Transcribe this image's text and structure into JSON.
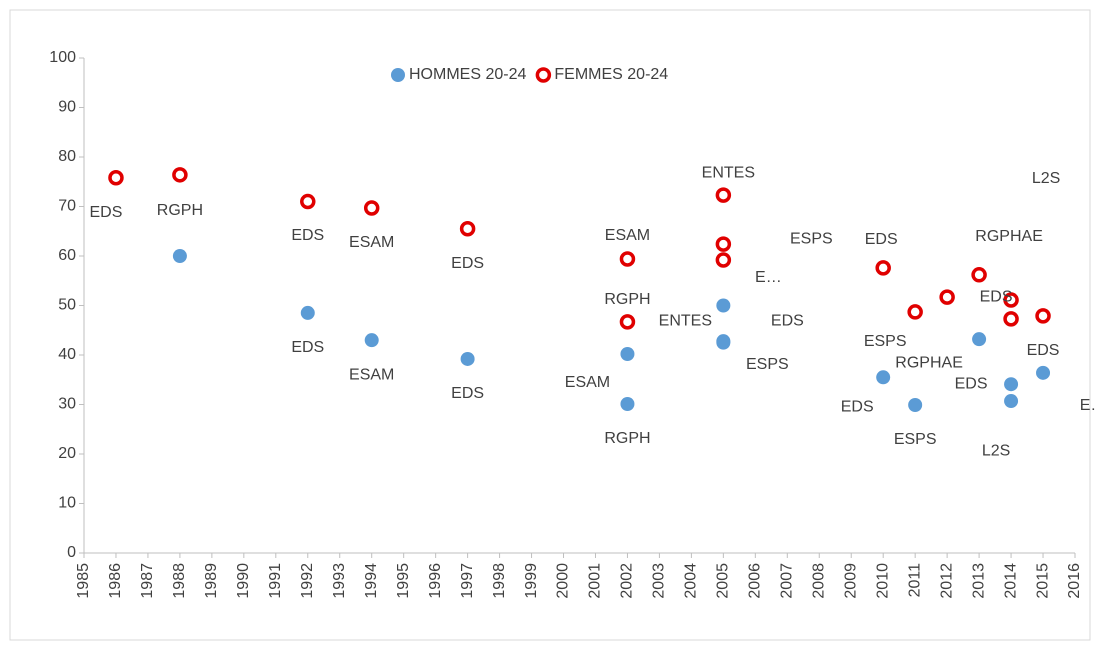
{
  "chart_data": {
    "type": "scatter",
    "xlim": [
      1985,
      2016
    ],
    "xticks": [
      1985,
      1986,
      1987,
      1988,
      1989,
      1990,
      1991,
      1992,
      1993,
      1994,
      1995,
      1996,
      1997,
      1998,
      1999,
      2000,
      2001,
      2002,
      2003,
      2004,
      2005,
      2006,
      2007,
      2008,
      2009,
      2010,
      2011,
      2012,
      2013,
      2014,
      2015,
      2016
    ],
    "ylim": [
      0,
      100
    ],
    "yticks": [
      0,
      10,
      20,
      30,
      40,
      50,
      60,
      70,
      80,
      90,
      100
    ],
    "legend": "top",
    "series": [
      {
        "name": "HOMMES 20-24",
        "color": "#5b9bd5",
        "marker": "filled",
        "x": [
          1988,
          1992,
          1994,
          1997,
          2002,
          2002,
          2005,
          2005,
          2005,
          2010,
          2011,
          2013,
          2014,
          2014,
          2015
        ],
        "values": [
          60,
          48.5,
          43,
          39.2,
          40.2,
          30.1,
          50,
          42.8,
          42.5,
          35.5,
          29.9,
          43.2,
          34.1,
          30.7,
          36.4
        ],
        "labels": [
          null,
          "EDS",
          "ESAM",
          "EDS",
          "ESAM",
          "RGPH",
          "ENTES",
          "EDS",
          "ESPS",
          "EDS",
          "ESPS",
          "RGPHAE",
          "EDS",
          "L2S",
          "E…"
        ]
      },
      {
        "name": "FEMMES 20-24",
        "color": "#e00000",
        "marker": "ring",
        "x": [
          1986,
          1988,
          1992,
          1994,
          1997,
          2002,
          2002,
          2005,
          2005,
          2005,
          2010,
          2011,
          2012,
          2013,
          2014,
          2014,
          2015
        ],
        "values": [
          75.8,
          76.4,
          71,
          69.7,
          65.5,
          59.4,
          46.7,
          72.3,
          62.4,
          59.2,
          57.6,
          48.7,
          51.7,
          56.2,
          51.1,
          47.3,
          47.9
        ],
        "labels": [
          "EDS",
          "RGPH",
          "EDS",
          "ESAM",
          "EDS",
          "ESAM",
          "RGPH",
          "ENTES",
          "ESPS",
          "E…",
          "EDS",
          "ESPS",
          null,
          "RGPHAE",
          "EDS",
          "L2S",
          "EDS"
        ]
      }
    ]
  }
}
